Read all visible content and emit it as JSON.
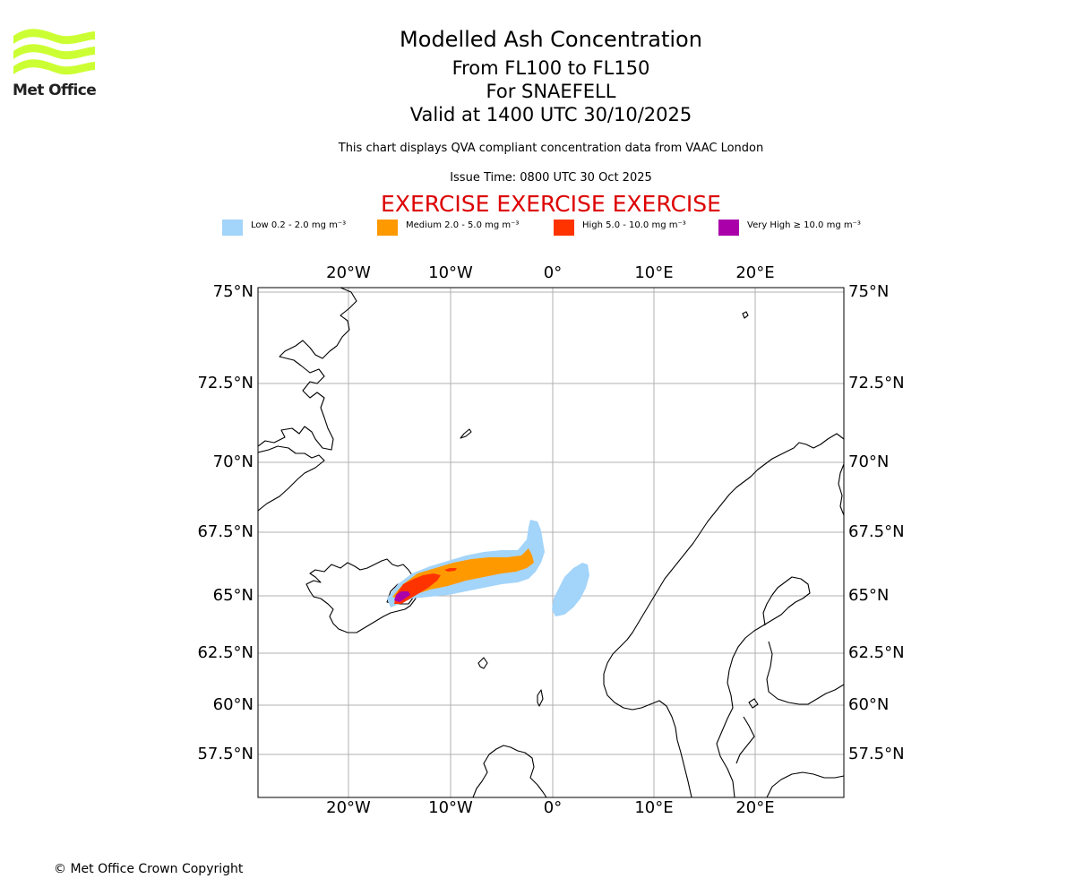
{
  "logo": {
    "text": "Met Office",
    "color": "#ccff33"
  },
  "titles": {
    "main": "Modelled Ash Concentration",
    "levels": "From FL100 to FL150",
    "volcano": "For SNAEFELL",
    "valid": "Valid at 1400 UTC 30/10/2025",
    "description": "This chart displays QVA compliant concentration data from VAAC London",
    "issue_time": "Issue Time: 0800 UTC 30 Oct 2025",
    "exercise": "EXERCISE EXERCISE EXERCISE"
  },
  "legend": [
    {
      "label": "Low 0.2 - 2.0 mg m⁻³",
      "color": "#a3d4fa"
    },
    {
      "label": "Medium 2.0 - 5.0 mg m⁻³",
      "color": "#ff9900"
    },
    {
      "label": "High 5.0 - 10.0 mg m⁻³",
      "color": "#ff3300"
    },
    {
      "label": "Very High  ≥  10.0 mg m⁻³",
      "color": "#aa00aa"
    }
  ],
  "map": {
    "lon_range": [
      -29,
      28.5
    ],
    "lat_range": [
      55.7,
      75.3
    ],
    "gridline_color": "#b0b0b0",
    "lon_ticks": [
      "20°W",
      "10°W",
      "0°",
      "10°E",
      "20°E"
    ],
    "lat_ticks": [
      "75°N",
      "72.5°N",
      "70°N",
      "67.5°N",
      "65°N",
      "62.5°N",
      "60°N",
      "57.5°N"
    ]
  },
  "copyright": "© Met Office Crown Copyright"
}
